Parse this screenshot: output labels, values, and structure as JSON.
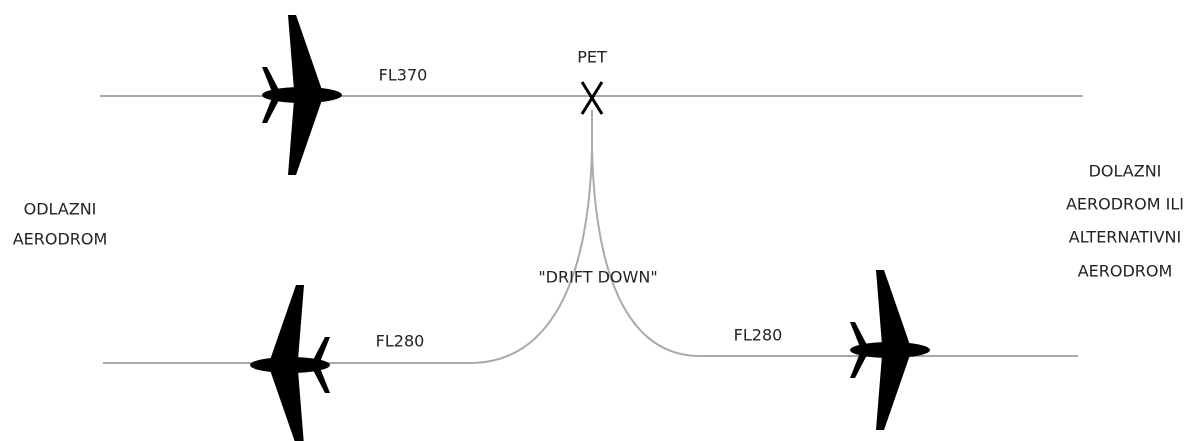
{
  "labels": {
    "top_level": "FL370",
    "pet": "PET",
    "departure": [
      "ODLAZNI",
      "AERODROM"
    ],
    "arrival": [
      "DOLAZNI",
      "AERODROM ILI",
      "ALTERNATIVNI",
      "AERODROM"
    ],
    "drift_down": "\"DRIFT DOWN\"",
    "bottom_left_level": "FL280",
    "bottom_right_level": "FL280"
  }
}
